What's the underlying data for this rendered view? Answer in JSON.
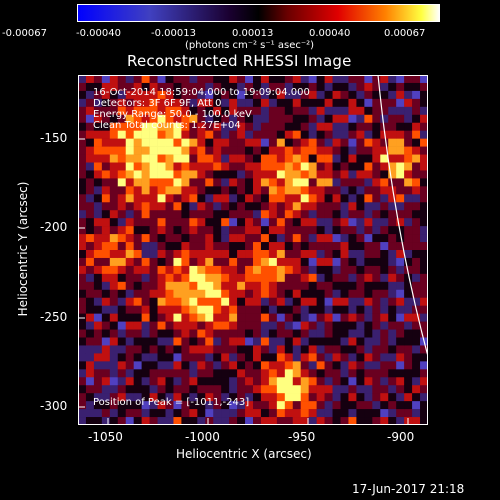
{
  "colorbar": {
    "ticks": [
      "-0.00067",
      "-0.00040",
      "-0.00013",
      "0.00013",
      "0.00040",
      "0.00067"
    ],
    "units": "(photons cm⁻² s⁻¹ asec⁻²)"
  },
  "title": "Reconstructed RHESSI Image",
  "info": {
    "time": "16-Oct-2014 18:59:04.000 to 19:09:04.000",
    "detectors": "Detectors: 3F 6F 9F, Att 0",
    "energy": "Energy Range: 50.0 - 100.0 keV",
    "clean": "Clean     Total counts: 1.27E+04",
    "peak": "Position of Peak = [-1011,-243]"
  },
  "axes": {
    "xlabel": "Heliocentric X (arcsec)",
    "ylabel": "Heliocentric Y (arcsec)",
    "xticks": [
      "-1050",
      "-1000",
      "-950",
      "-900"
    ],
    "yticks": [
      "-150",
      "-200",
      "-250",
      "-300"
    ]
  },
  "timestamp": "17-Jun-2017 21:18"
}
